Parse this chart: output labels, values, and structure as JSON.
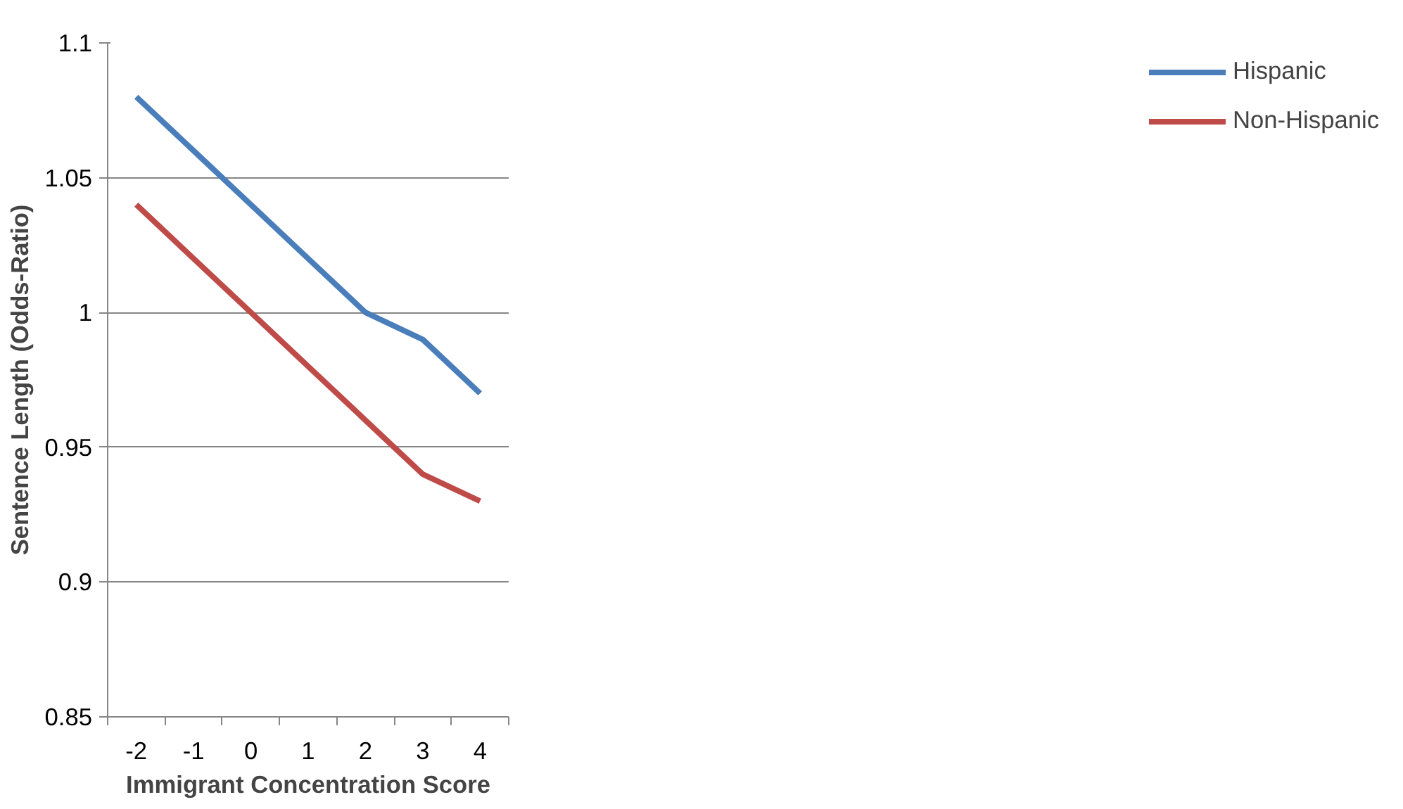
{
  "chart_data": {
    "type": "line",
    "xlabel": "Immigrant Concentration Score",
    "ylabel": "Sentence Length (Odds-Ratio)",
    "categories": [
      "-2",
      "-1",
      "0",
      "1",
      "2",
      "3",
      "4"
    ],
    "series": [
      {
        "name": "Hispanic",
        "color": "#4a7ebb",
        "values": [
          1.08,
          1.06,
          1.04,
          1.02,
          1.0,
          0.99,
          0.97
        ]
      },
      {
        "name": "Non-Hispanic",
        "color": "#be4b48",
        "values": [
          1.04,
          1.02,
          1.0,
          0.98,
          0.96,
          0.94,
          0.93
        ]
      }
    ],
    "ylim": [
      0.85,
      1.1
    ],
    "yticks": [
      0.85,
      0.9,
      0.95,
      1,
      1.05,
      1.1
    ],
    "grid": "y",
    "legend": "right",
    "marker": "none",
    "line_style": "solid"
  }
}
